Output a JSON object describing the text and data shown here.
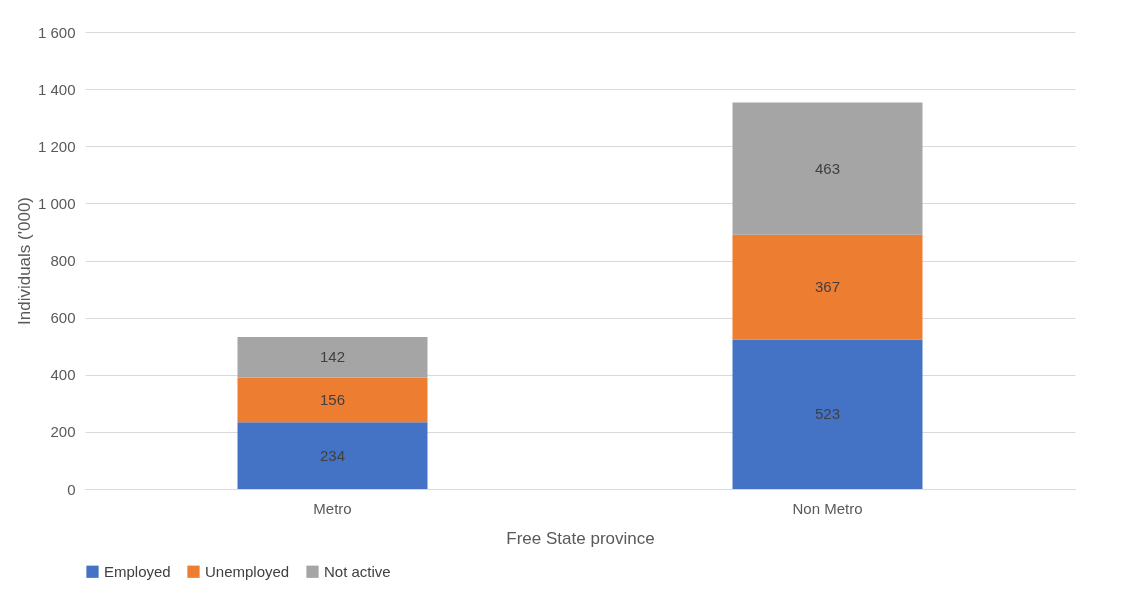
{
  "chart_data": {
    "type": "bar",
    "stacked": true,
    "xlabel": "Free State province",
    "ylabel": "Individuals ('000)",
    "categories": [
      "Metro",
      "Non Metro"
    ],
    "series": [
      {
        "name": "Employed",
        "color": "#4472c4",
        "values": [
          234,
          523
        ]
      },
      {
        "name": "Unemployed",
        "color": "#ed7d31",
        "values": [
          156,
          367
        ]
      },
      {
        "name": "Not active",
        "color": "#a5a5a5",
        "values": [
          142,
          463
        ]
      }
    ],
    "ylim": [
      0,
      1600
    ],
    "yticks": [
      0,
      200,
      400,
      600,
      800,
      {
        "value": 1000,
        "label": "1 000"
      },
      {
        "value": 1200,
        "label": "1 200"
      },
      {
        "value": 1400,
        "label": "1 400"
      },
      {
        "value": 1600,
        "label": "1 600"
      }
    ],
    "grid": "y",
    "legend": "bottom",
    "data_labels": true
  }
}
